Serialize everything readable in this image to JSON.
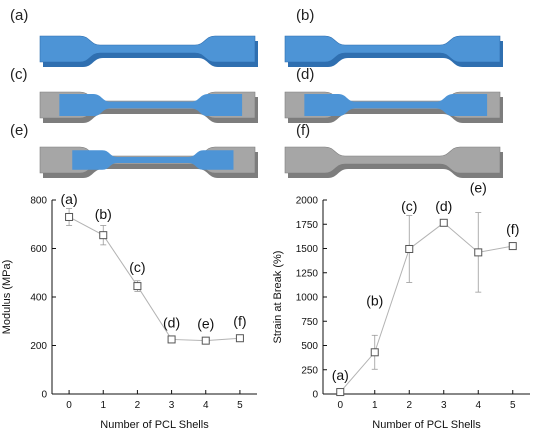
{
  "specimens": {
    "labels": [
      "(a)",
      "(b)",
      "(c)",
      "(d)",
      "(e)",
      "(f)"
    ],
    "fill_fractions": [
      1.0,
      1.0,
      0.85,
      0.85,
      0.75,
      0.0
    ],
    "colors": {
      "core": "#4d94d6",
      "core_dark": "#2f6fb0",
      "shell": "#a6a6a6",
      "shell_dark": "#7d7d7d"
    }
  },
  "chart_data": [
    {
      "type": "line",
      "xlabel": "Number of PCL Shells",
      "ylabel": "Modulus (MPa)",
      "x": [
        0,
        1,
        2,
        3,
        4,
        5
      ],
      "xticks": [
        "0",
        "1",
        "2",
        "3",
        "4",
        "5"
      ],
      "xlim": [
        -0.5,
        5.5
      ],
      "ylim": [
        0,
        800
      ],
      "yticks": [
        "0",
        "200",
        "400",
        "600",
        "800"
      ],
      "series": [
        {
          "values": [
            730,
            655,
            445,
            225,
            220,
            230
          ],
          "errors": [
            35,
            40,
            22,
            8,
            5,
            8
          ]
        }
      ],
      "point_labels": [
        "(a)",
        "(b)",
        "(c)",
        "(d)",
        "(e)",
        "(f)"
      ],
      "marker": "open-square",
      "grid": false
    },
    {
      "type": "line",
      "xlabel": "Number of PCL Shells",
      "ylabel": "Strain at Break (%)",
      "x": [
        0,
        1,
        2,
        3,
        4,
        5
      ],
      "xticks": [
        "0",
        "1",
        "2",
        "3",
        "4",
        "5"
      ],
      "xlim": [
        -0.5,
        5.5
      ],
      "ylim": [
        0,
        2000
      ],
      "yticks": [
        "0",
        "250",
        "500",
        "750",
        "1000",
        "1250",
        "1500",
        "1750",
        "2000"
      ],
      "series": [
        {
          "values": [
            20,
            430,
            1495,
            1765,
            1460,
            1525
          ],
          "errors": [
            10,
            175,
            345,
            0,
            410,
            0
          ]
        }
      ],
      "point_labels": [
        "(a)",
        "(b)",
        "(c)",
        "(d)",
        "(e)",
        "(f)"
      ],
      "marker": "open-square",
      "grid": false
    }
  ]
}
